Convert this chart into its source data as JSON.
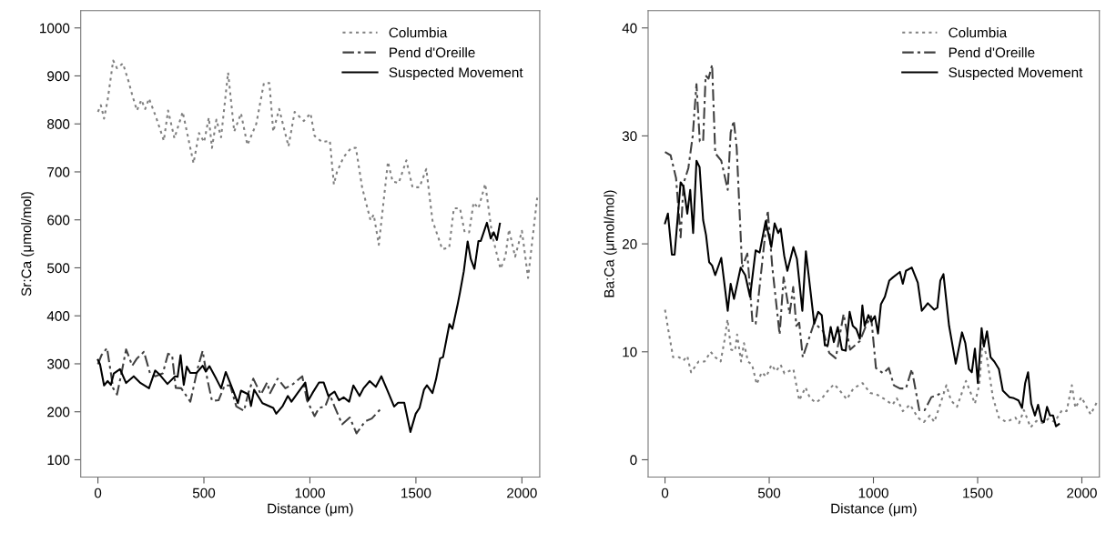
{
  "chart_data": [
    {
      "type": "line",
      "xlabel": "Distance (μm)",
      "ylabel": "Sr:Ca (μmol/mol)",
      "xlim": [
        -81,
        2084
      ],
      "ylim": [
        64,
        1036
      ],
      "xticks": [
        0,
        500,
        1000,
        1500,
        2000
      ],
      "yticks": [
        100,
        200,
        300,
        400,
        500,
        600,
        700,
        800,
        900,
        1000
      ],
      "grid": false,
      "legend": "top right",
      "marker": "none",
      "series": [
        {
          "name": "Columbia",
          "color": "#808080",
          "line_style": "dotted",
          "x": [
            0,
            14,
            29,
            46,
            72,
            90,
            118,
            145,
            162,
            184,
            205,
            223,
            241,
            275,
            311,
            331,
            361,
            400,
            451,
            477,
            501,
            523,
            538,
            559,
            581,
            614,
            643,
            675,
            705,
            747,
            783,
            809,
            827,
            855,
            899,
            928,
            971,
            1003,
            1022,
            1058,
            1094,
            1113,
            1127,
            1159,
            1195,
            1217,
            1246,
            1286,
            1301,
            1325,
            1368,
            1390,
            1419,
            1455,
            1484,
            1517,
            1549,
            1578,
            1624,
            1657,
            1679,
            1708,
            1730,
            1751,
            1772,
            1795,
            1827,
            1860,
            1899,
            1922,
            1939,
            1968,
            2000,
            2029,
            2055,
            2072
          ],
          "values": [
            825,
            839,
            811,
            850,
            932,
            916,
            926,
            888,
            860,
            828,
            850,
            831,
            853,
            813,
            765,
            828,
            770,
            825,
            718,
            781,
            762,
            813,
            750,
            809,
            772,
            907,
            784,
            822,
            756,
            800,
            885,
            885,
            784,
            831,
            753,
            825,
            806,
            822,
            775,
            762,
            765,
            674,
            699,
            731,
            750,
            750,
            668,
            599,
            611,
            548,
            721,
            680,
            677,
            724,
            668,
            668,
            706,
            599,
            539,
            542,
            624,
            624,
            574,
            574,
            636,
            624,
            675,
            567,
            498,
            523,
            580,
            523,
            577,
            479,
            580,
            646
          ]
        },
        {
          "name": "Pend d'Oreille",
          "color": "#404040",
          "line_style": "dashdot",
          "x": [
            0,
            17,
            43,
            72,
            90,
            111,
            133,
            162,
            184,
            217,
            246,
            270,
            306,
            331,
            350,
            367,
            393,
            436,
            472,
            494,
            516,
            538,
            569,
            598,
            624,
            653,
            689,
            711,
            733,
            769,
            798,
            812,
            848,
            884,
            921,
            964,
            986,
            1022,
            1043,
            1072,
            1094,
            1116,
            1152,
            1188,
            1220,
            1260,
            1292,
            1332
          ],
          "values": [
            299,
            318,
            333,
            249,
            236,
            280,
            330,
            296,
            311,
            325,
            280,
            274,
            280,
            321,
            318,
            250,
            249,
            221,
            293,
            327,
            268,
            223,
            224,
            255,
            255,
            211,
            202,
            241,
            269,
            236,
            261,
            239,
            269,
            249,
            258,
            274,
            224,
            191,
            208,
            211,
            236,
            211,
            174,
            188,
            155,
            180,
            186,
            205
          ]
        },
        {
          "name": "Suspected Movement",
          "color": "#000000",
          "line_style": "solid",
          "x": [
            0,
            10,
            29,
            46,
            61,
            75,
            104,
            133,
            169,
            198,
            241,
            270,
            292,
            328,
            364,
            376,
            390,
            405,
            419,
            436,
            465,
            494,
            509,
            526,
            559,
            581,
            603,
            639,
            660,
            675,
            711,
            722,
            737,
            776,
            827,
            841,
            870,
            896,
            913,
            942,
            978,
            993,
            1012,
            1043,
            1065,
            1087,
            1116,
            1137,
            1159,
            1185,
            1205,
            1234,
            1253,
            1282,
            1311,
            1337,
            1368,
            1397,
            1416,
            1445,
            1474,
            1499,
            1517,
            1538,
            1552,
            1578,
            1595,
            1614,
            1628,
            1658,
            1672,
            1697,
            1708,
            1726,
            1744,
            1759,
            1776,
            1795,
            1806,
            1835,
            1853,
            1867,
            1882,
            1896
          ],
          "values": [
            308,
            299,
            255,
            264,
            256,
            280,
            289,
            260,
            274,
            261,
            249,
            286,
            277,
            258,
            274,
            273,
            318,
            256,
            294,
            281,
            281,
            296,
            284,
            295,
            268,
            249,
            283,
            243,
            218,
            244,
            236,
            212,
            246,
            218,
            208,
            196,
            211,
            233,
            221,
            239,
            261,
            224,
            239,
            261,
            261,
            233,
            242,
            224,
            230,
            221,
            255,
            233,
            249,
            264,
            252,
            274,
            242,
            211,
            219,
            219,
            158,
            196,
            208,
            246,
            255,
            239,
            268,
            311,
            314,
            383,
            373,
            424,
            449,
            493,
            555,
            518,
            498,
            556,
            556,
            594,
            561,
            574,
            558,
            592
          ]
        }
      ]
    },
    {
      "type": "line",
      "xlabel": "Distance (μm)",
      "ylabel": "Ba:Ca (μmol/mol)",
      "xlim": [
        -81,
        2084
      ],
      "ylim": [
        -1.6,
        41.6
      ],
      "xticks": [
        0,
        500,
        1000,
        1500,
        2000
      ],
      "yticks": [
        0,
        10,
        20,
        30,
        40
      ],
      "grid": false,
      "legend": "top right",
      "marker": "none",
      "series": [
        {
          "name": "Columbia",
          "color": "#808080",
          "line_style": "dotted",
          "x": [
            0,
            17,
            39,
            68,
            89,
            107,
            125,
            161,
            190,
            219,
            241,
            267,
            285,
            300,
            317,
            336,
            346,
            365,
            379,
            398,
            418,
            440,
            464,
            486,
            511,
            532,
            555,
            573,
            616,
            644,
            674,
            696,
            724,
            753,
            782,
            811,
            831,
            872,
            904,
            948,
            984,
            1020,
            1055,
            1092,
            1112,
            1141,
            1176,
            1213,
            1242,
            1271,
            1292,
            1320,
            1350,
            1372,
            1401,
            1444,
            1487,
            1508,
            1525,
            1545,
            1573,
            1602,
            1637,
            1681,
            1699,
            1722,
            1754,
            1782,
            1811,
            1840,
            1869,
            1905,
            1927,
            1952,
            1969,
            1998,
            2042,
            2071
          ],
          "values": [
            13.9,
            11.9,
            9.5,
            9.5,
            9.2,
            9.6,
            8.1,
            9.1,
            9.1,
            10,
            9.5,
            9.1,
            11,
            13,
            10.2,
            10.1,
            11.6,
            9.1,
            10.8,
            9.1,
            8.8,
            7,
            8.1,
            7.7,
            8.8,
            8.2,
            8.8,
            8,
            8.4,
            5.5,
            6.7,
            5.7,
            5.3,
            5.7,
            6.4,
            7,
            6.6,
            5.6,
            6.6,
            7.1,
            6.2,
            6,
            5.6,
            5.1,
            5.7,
            4.5,
            5.1,
            3.9,
            3.5,
            4.1,
            3.5,
            5.1,
            6.9,
            5.5,
            4.9,
            7.3,
            5.2,
            7,
            11,
            9.4,
            5.8,
            3.9,
            3.5,
            3.9,
            3.4,
            4.6,
            3,
            3.6,
            3.4,
            3.8,
            3.5,
            4.6,
            4.5,
            6.9,
            4.8,
            5.8,
            4.2,
            5.3
          ]
        },
        {
          "name": "Pend d'Oreille",
          "color": "#404040",
          "line_style": "dashdot",
          "x": [
            0,
            27,
            53,
            75,
            89,
            112,
            133,
            151,
            167,
            183,
            195,
            209,
            226,
            241,
            270,
            301,
            315,
            330,
            344,
            370,
            395,
            420,
            435,
            493,
            515,
            550,
            569,
            598,
            615,
            630,
            644,
            661,
            716,
            759,
            788,
            819,
            857,
            888,
            935,
            964,
            989,
            1012,
            1047,
            1074,
            1098,
            1127,
            1156,
            1184,
            1220,
            1246,
            1278,
            1307,
            1336
          ],
          "values": [
            28.5,
            28.2,
            26.1,
            20.6,
            25.6,
            27,
            30,
            34.8,
            29.5,
            29.5,
            35.6,
            35.3,
            36.6,
            28.4,
            27.7,
            25,
            30.3,
            31.4,
            28.9,
            17.8,
            19.1,
            12.7,
            12.6,
            23.1,
            17.8,
            11.6,
            16.9,
            13.5,
            16,
            12.4,
            12.7,
            9.5,
            12.7,
            11.9,
            9.9,
            9.4,
            13.5,
            10.2,
            11,
            12.4,
            13.3,
            8.5,
            8,
            8.5,
            6.9,
            6.6,
            6.6,
            8.4,
            4.6,
            4.6,
            5.8,
            6,
            6.3
          ]
        },
        {
          "name": "Suspected Movement",
          "color": "#000000",
          "line_style": "solid",
          "x": [
            0,
            14,
            33,
            46,
            75,
            89,
            107,
            121,
            135,
            151,
            166,
            183,
            197,
            212,
            226,
            241,
            270,
            301,
            315,
            331,
            363,
            385,
            408,
            435,
            454,
            483,
            510,
            526,
            543,
            555,
            572,
            587,
            616,
            633,
            659,
            676,
            716,
            735,
            752,
            767,
            781,
            795,
            810,
            829,
            849,
            867,
            886,
            901,
            918,
            935,
            947,
            958,
            976,
            990,
            1007,
            1022,
            1036,
            1055,
            1076,
            1094,
            1127,
            1141,
            1156,
            1184,
            1213,
            1232,
            1261,
            1292,
            1307,
            1321,
            1336,
            1363,
            1395,
            1425,
            1441,
            1458,
            1472,
            1487,
            1501,
            1519,
            1530,
            1545,
            1562,
            1580,
            1602,
            1621,
            1653,
            1674,
            1696,
            1713,
            1728,
            1742,
            1757,
            1775,
            1790,
            1807,
            1818,
            1833,
            1847,
            1862,
            1876,
            1890
          ],
          "values": [
            21.9,
            22.8,
            19,
            19,
            25.7,
            25.3,
            22.8,
            25,
            21,
            27.7,
            27.1,
            22.2,
            20.8,
            18.3,
            18,
            17.1,
            18.7,
            13.8,
            16.3,
            14.9,
            17.8,
            17.1,
            15.1,
            19.4,
            19.2,
            22.1,
            19.7,
            21.9,
            21,
            21.4,
            18.9,
            17.5,
            19.7,
            18.6,
            13.8,
            19.3,
            12.6,
            13.7,
            13.4,
            10.6,
            10.6,
            12.3,
            10.9,
            12.3,
            10.2,
            10.1,
            13.7,
            12.4,
            12.1,
            11.2,
            14.3,
            12.4,
            13.4,
            12.8,
            13.3,
            11.7,
            14.4,
            15.1,
            16.6,
            16.9,
            17.4,
            16.3,
            17.5,
            17.8,
            16.4,
            13.8,
            14.5,
            13.9,
            14.1,
            16.6,
            17.2,
            12.4,
            8.9,
            11.8,
            10.8,
            8.4,
            8.1,
            10.3,
            7.1,
            12.2,
            10.5,
            11.9,
            9.5,
            9.1,
            8.4,
            6.4,
            5.8,
            5.7,
            5.5,
            4.8,
            7.1,
            8.1,
            5.2,
            4.1,
            5.1,
            3.6,
            3.5,
            4.9,
            4.1,
            4.1,
            3.1,
            3.3
          ]
        }
      ]
    }
  ]
}
